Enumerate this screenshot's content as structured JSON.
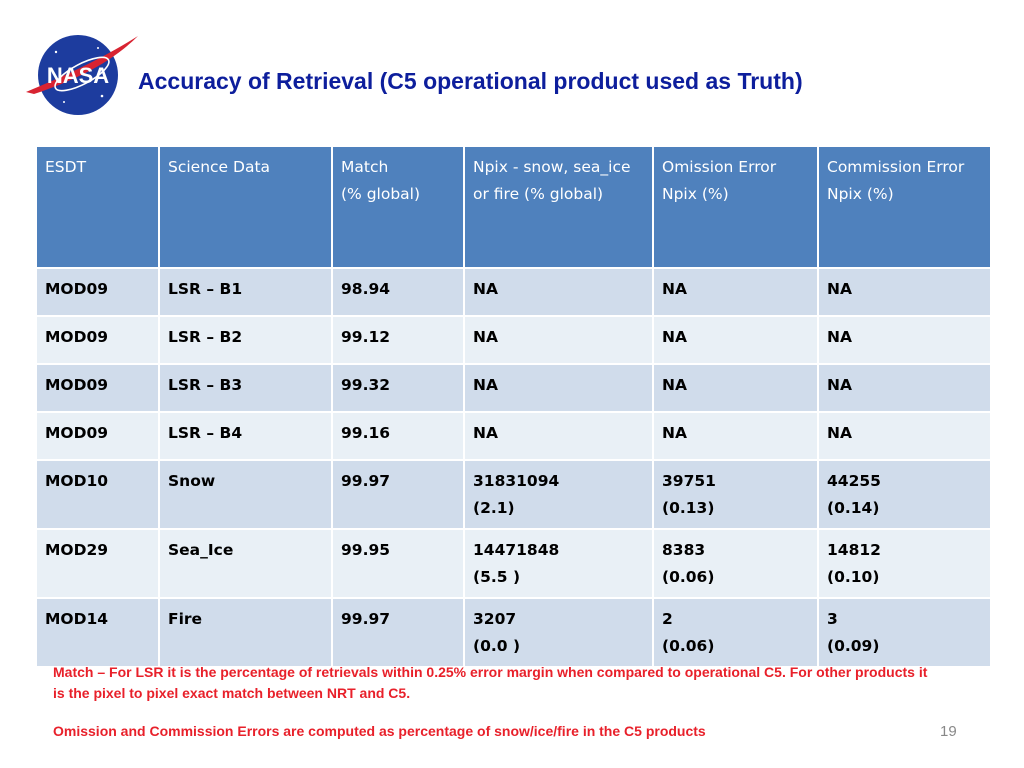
{
  "logo": {
    "text": "NASA",
    "colors": {
      "globe": "#1d3c9e",
      "chevron": "#d82331",
      "text": "#ffffff"
    }
  },
  "title": "Accuracy of Retrieval (C5 operational product used as Truth)",
  "table": {
    "headers": [
      {
        "line1": "ESDT",
        "line2": ""
      },
      {
        "line1": "Science Data",
        "line2": ""
      },
      {
        "line1": "Match",
        "line2": "(% global)"
      },
      {
        "line1": "Npix - snow, sea_ice or fire (% global)",
        "line2": ""
      },
      {
        "line1": "Omission Error",
        "line2": "Npix (%)"
      },
      {
        "line1": "Commission Error",
        "line2": "Npix (%)"
      }
    ],
    "rows": [
      {
        "esdt": "MOD09",
        "science": "LSR – B1",
        "match": "98.94",
        "npix": "NA",
        "npix_pct": "",
        "omission": "NA",
        "omission_pct": "",
        "commission": "NA",
        "commission_pct": ""
      },
      {
        "esdt": "MOD09",
        "science": "LSR – B2",
        "match": "99.12",
        "npix": "NA",
        "npix_pct": "",
        "omission": "NA",
        "omission_pct": "",
        "commission": "NA",
        "commission_pct": ""
      },
      {
        "esdt": "MOD09",
        "science": "LSR – B3",
        "match": "99.32",
        "npix": "NA",
        "npix_pct": "",
        "omission": "NA",
        "omission_pct": "",
        "commission": "NA",
        "commission_pct": ""
      },
      {
        "esdt": "MOD09",
        "science": "LSR – B4",
        "match": "99.16",
        "npix": "NA",
        "npix_pct": "",
        "omission": "NA",
        "omission_pct": "",
        "commission": "NA",
        "commission_pct": ""
      },
      {
        "esdt": "MOD10",
        "science": "Snow",
        "match": "99.97",
        "npix": "31831094",
        "npix_pct": "(2.1)",
        "omission": "39751",
        "omission_pct": "(0.13)",
        "commission": "44255",
        "commission_pct": "(0.14)"
      },
      {
        "esdt": "MOD29",
        "science": "Sea_Ice",
        "match": "99.95",
        "npix": "14471848",
        "npix_pct": "(5.5 )",
        "omission": "8383",
        "omission_pct": "(0.06)",
        "commission": "14812",
        "commission_pct": "(0.10)"
      },
      {
        "esdt": "MOD14",
        "science": "Fire",
        "match": "99.97",
        "npix": "3207",
        "npix_pct": "(0.0 )",
        "omission": "2",
        "omission_pct": "(0.06)",
        "commission": "3",
        "commission_pct": "(0.09)"
      }
    ]
  },
  "notes": {
    "match": "Match – For LSR it is the percentage of retrievals within 0.25% error margin when compared to operational C5. For other products it is the pixel to pixel exact match between NRT and C5.",
    "errors": "Omission and Commission Errors are computed as percentage of snow/ice/fire in the C5 products"
  },
  "page_number": "19",
  "colors": {
    "title": "#0d1e9c",
    "header_bg": "#4f81bd",
    "row_dark": "#d0dceb",
    "row_light": "#e9f0f6",
    "note_red": "#e8202a"
  }
}
